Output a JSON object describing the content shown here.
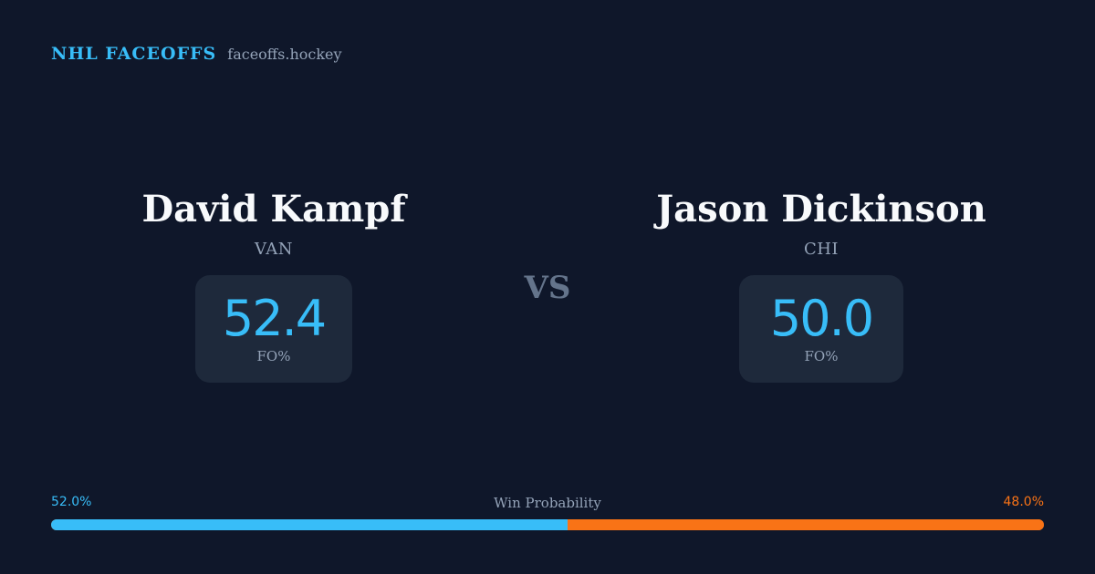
{
  "brand": {
    "name": "NHL FACEOFFS",
    "domain": "faceoffs.hockey",
    "accent": "#38bdf8"
  },
  "players": [
    {
      "name": "David Kampf",
      "team": "VAN",
      "fo_value": "52.4",
      "fo_label": "FO%"
    },
    {
      "name": "Jason Dickinson",
      "team": "CHI",
      "fo_value": "50.0",
      "fo_label": "FO%"
    }
  ],
  "vs_label": "VS",
  "win_probability": {
    "title": "Win Probability",
    "left_label": "52.0%",
    "right_label": "48.0%",
    "left_value": 52.0,
    "right_value": 48.0,
    "left_color": "#38bdf8",
    "right_color": "#f97316"
  }
}
